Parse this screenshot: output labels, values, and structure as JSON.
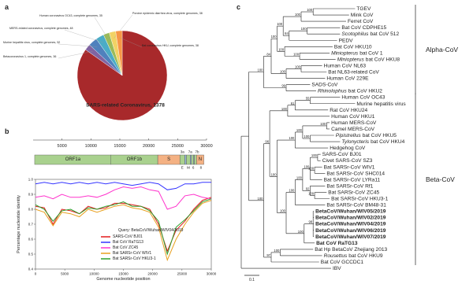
{
  "panel_labels": [
    "a",
    "b",
    "c"
  ],
  "chart_data": [
    {
      "type": "pie",
      "values": [
        1378,
        36,
        52,
        48,
        35,
        38,
        38
      ],
      "value_labels": [
        "SARS-related Coronavirus, 1378",
        "Betacoronavirus 1, complete genomes, 36",
        "Murine hepatitis virus, complete genomes, 52",
        "MERS-related coronavirus, complete genomes, 48",
        "Human coronavirus OC43, complete genomes, 35",
        "Porcine epidemic diarrhea virus, complete genomes, 38",
        "Bat coronavirus HKU, complete genomes, 38"
      ],
      "colors": [
        "#a8292b",
        "#8064a2",
        "#4f81bd",
        "#4bacc6",
        "#9bbb59",
        "#f2d264",
        "#f79646"
      ]
    },
    {
      "type": "line",
      "text": "Query: BetaCoV/Wuhan/WIV04/2019",
      "x_label": "Genome nucleotide position",
      "y_label": "Percentage nucleotide identity",
      "x": [
        0,
        1500,
        3000,
        4500,
        6000,
        7500,
        9000,
        10500,
        12000,
        13500,
        15000,
        16500,
        18000,
        19500,
        21000,
        22500,
        24000,
        25500,
        27000,
        28500,
        30000
      ],
      "series": [
        {
          "name": "SARS-CoV BJ01",
          "color": "#e31a1c",
          "values": [
            0.82,
            0.81,
            0.7,
            0.8,
            0.79,
            0.77,
            0.82,
            0.8,
            0.81,
            0.84,
            0.84,
            0.83,
            0.82,
            0.8,
            0.7,
            0.52,
            0.66,
            0.72,
            0.8,
            0.86,
            0.88
          ]
        },
        {
          "name": "Bat CoV RaTG13",
          "color": "#3333ff",
          "values": [
            0.97,
            0.98,
            0.97,
            0.98,
            0.97,
            0.98,
            0.97,
            0.98,
            0.97,
            0.98,
            0.97,
            0.96,
            0.97,
            0.98,
            0.97,
            0.93,
            0.94,
            0.97,
            0.97,
            0.98,
            0.98
          ]
        },
        {
          "name": "Bat CoV ZC45",
          "color": "#ff33cc",
          "values": [
            0.88,
            0.89,
            0.87,
            0.9,
            0.88,
            0.88,
            0.89,
            0.88,
            0.9,
            0.93,
            0.95,
            0.94,
            0.95,
            0.93,
            0.92,
            0.8,
            0.82,
            0.89,
            0.9,
            0.88,
            0.87
          ]
        },
        {
          "name": "Bat SARSr-CoV WIV1",
          "color": "#e8a020",
          "values": [
            0.8,
            0.78,
            0.69,
            0.78,
            0.77,
            0.75,
            0.8,
            0.78,
            0.8,
            0.82,
            0.83,
            0.81,
            0.8,
            0.78,
            0.68,
            0.46,
            0.6,
            0.7,
            0.78,
            0.84,
            0.86
          ]
        },
        {
          "name": "Bat SARSr-CoV HKU3-1",
          "color": "#2ca02c",
          "values": [
            0.83,
            0.8,
            0.72,
            0.79,
            0.8,
            0.77,
            0.81,
            0.8,
            0.82,
            0.83,
            0.85,
            0.82,
            0.82,
            0.79,
            0.72,
            0.5,
            0.68,
            0.73,
            0.79,
            0.85,
            0.87
          ]
        }
      ],
      "xlim": [
        0,
        30000
      ],
      "xticks": [
        0,
        5000,
        10000,
        15000,
        20000,
        25000,
        30000
      ],
      "ylim": [
        0.4,
        1
      ],
      "yticks": [
        0.4,
        0.5,
        0.6,
        0.7,
        0.8,
        0.9,
        {
          "value": 1,
          "label": "1.0"
        }
      ],
      "legend": "lower center"
    }
  ],
  "genome_map": {
    "xlim": [
      0,
      30000
    ],
    "xticks": [
      5000,
      10000,
      15000,
      20000,
      25000,
      30000
    ],
    "orfs": [
      {
        "name": "ORF1a",
        "start": 266,
        "end": 13483,
        "color": "#a9d18e"
      },
      {
        "name": "ORF1b",
        "start": 13468,
        "end": 21555,
        "color": "#a9d18e"
      },
      {
        "name": "S",
        "start": 21563,
        "end": 25384,
        "color": "#f4b183"
      },
      {
        "name": "3a",
        "start": 25393,
        "end": 26220,
        "color": "#a9d18e"
      },
      {
        "name": "E",
        "start": 26245,
        "end": 26472,
        "color": "#9dc3e6"
      },
      {
        "name": "M",
        "start": 26523,
        "end": 27191,
        "color": "#a9d18e"
      },
      {
        "name": "6",
        "start": 27202,
        "end": 27387,
        "color": "#9dc3e6"
      },
      {
        "name": "7a",
        "start": 27394,
        "end": 27759,
        "color": "#a9d18e"
      },
      {
        "name": "7b",
        "start": 27756,
        "end": 27887,
        "color": "#9dc3e6"
      },
      {
        "name": "8",
        "start": 27894,
        "end": 28259,
        "color": "#a9d18e"
      },
      {
        "name": "N",
        "start": 28274,
        "end": 29533,
        "color": "#f4b183"
      }
    ]
  },
  "tree": {
    "taxa": [
      {
        "name": "TGEV"
      },
      {
        "name": "Mink CoV"
      },
      {
        "name": "Ferret CoV"
      },
      {
        "name": "Bat CoV CDPHE15"
      },
      {
        "genus": "Scotophilus",
        "name": "bat CoV 512"
      },
      {
        "name": "PEDV"
      },
      {
        "name": "Bat CoV HKU10"
      },
      {
        "genus": "Miniopterus",
        "name": "bat CoV 1"
      },
      {
        "genus": "Miniopterus",
        "name": "bat CoV HKU8"
      },
      {
        "name": "Human CoV NL63"
      },
      {
        "name": "Bat NL63-related CoV"
      },
      {
        "name": "Human CoV 229E"
      },
      {
        "name": "SADS-CoV"
      },
      {
        "genus": "Rhinolophus",
        "name": "bat CoV HKU2"
      },
      {
        "name": "Human CoV OC43"
      },
      {
        "name": "Murine hepatitis virus"
      },
      {
        "name": "Rat CoV HKU24"
      },
      {
        "name": "Human CoV HKU1"
      },
      {
        "name": "Human MERS-CoV"
      },
      {
        "name": "Camel MERS-CoV"
      },
      {
        "genus": "Pipistrellus",
        "name": "bat CoV HKU5"
      },
      {
        "genus": "Tylonycteris",
        "name": "bat CoV HKU4"
      },
      {
        "name": "Hedgehog CoV"
      },
      {
        "name": "SARS-CoV BJ01"
      },
      {
        "name": "Civet SARS-CoV SZ3"
      },
      {
        "name": "Bat SARSr-CoV WIV1"
      },
      {
        "name": "Bat SARSr-CoV SHC014"
      },
      {
        "name": "Bat SARSr-CoV LYRa11"
      },
      {
        "name": "Bat SARSr-CoV Rf1"
      },
      {
        "name": "Bat SARSr-CoV ZC45"
      },
      {
        "name": "Bat SARSr-CoV HKU3-1"
      },
      {
        "name": "Bat SARSr-CoV BM48-31"
      },
      {
        "name": "BetaCoV/Wuhan/WIV05/2019",
        "color": "#e31a1c"
      },
      {
        "name": "BetaCoV/Wuhan/WIV02/2019",
        "color": "#e31a1c"
      },
      {
        "name": "BetaCoV/Wuhan/WIV04/2019",
        "color": "#e31a1c"
      },
      {
        "name": "BetaCoV/Wuhan/WIV06/2019",
        "color": "#e31a1c"
      },
      {
        "name": "BetaCoV/Wuhan/WIV07/2019",
        "color": "#e31a1c"
      },
      {
        "name": "Bat CoV RaTG13",
        "color": "#e31a1c"
      },
      {
        "name": "Bat Hp BetaCoV Zhejiang 2013"
      },
      {
        "genus": "Rousettus",
        "name": "bat CoV HKU9"
      },
      {
        "name": "Bat CoV GCCDC1"
      },
      {
        "name": "IBV"
      }
    ],
    "bootstrap": [
      100,
      100,
      100,
      84,
      100,
      100,
      100,
      100,
      100,
      100,
      84,
      99,
      100,
      55,
      61,
      100,
      100,
      100,
      100,
      100,
      100,
      100,
      100,
      100,
      92,
      100,
      100,
      98,
      100,
      100,
      100,
      96,
      100,
      97,
      100
    ],
    "clades": [
      "Alpha-CoV",
      "Beta-CoV"
    ],
    "scale_bar": 0.1
  }
}
